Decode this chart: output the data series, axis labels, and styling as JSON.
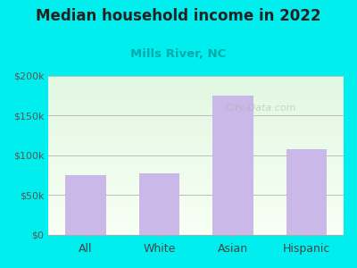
{
  "categories": [
    "All",
    "White",
    "Asian",
    "Hispanic"
  ],
  "values": [
    75000,
    78000,
    175000,
    108000
  ],
  "bar_color": "#c9b8e8",
  "title": "Median household income in 2022",
  "subtitle": "Mills River, NC",
  "subtitle_color": "#00aaaa",
  "title_color": "#222222",
  "background_color": "#00eeee",
  "ylim": [
    0,
    200000
  ],
  "yticks": [
    0,
    50000,
    100000,
    150000,
    200000
  ],
  "ytick_labels": [
    "$0",
    "$50k",
    "$100k",
    "$150k",
    "$200k"
  ],
  "watermark": "City-Data.com"
}
